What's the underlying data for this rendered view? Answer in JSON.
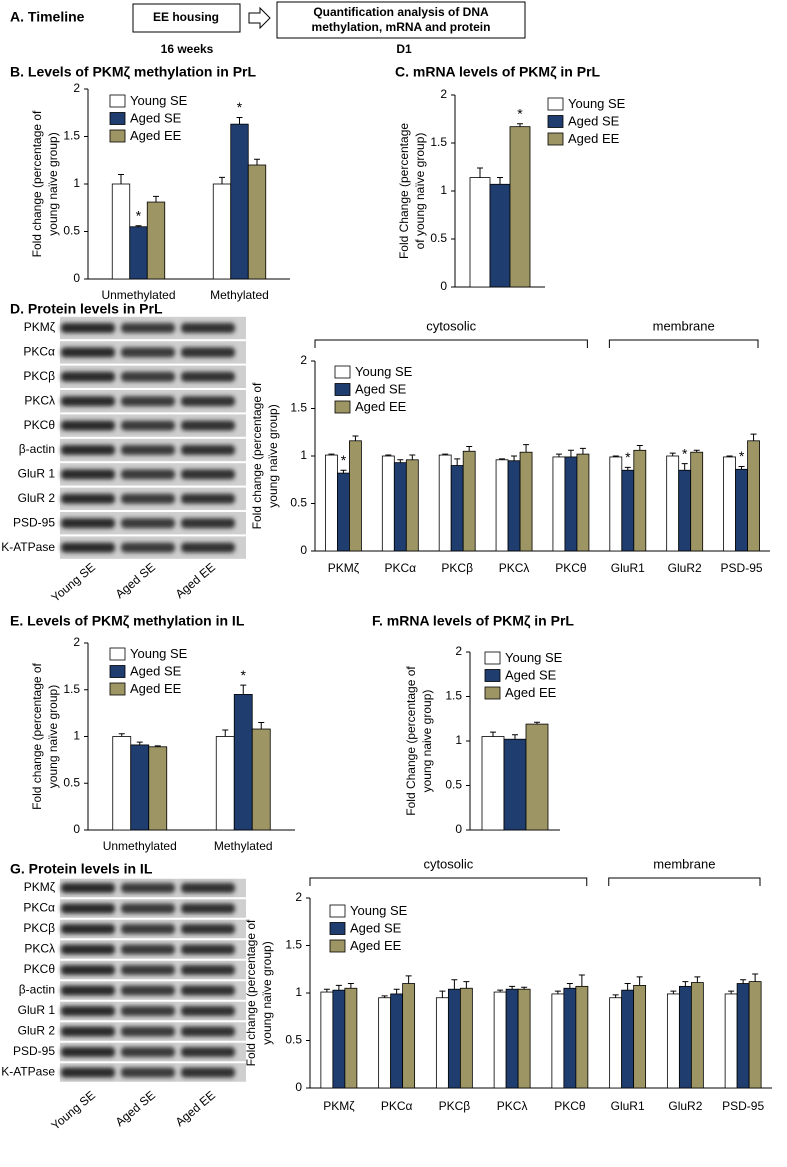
{
  "timeline": {
    "label": "A. Timeline",
    "steps": [
      {
        "text": [
          "EE housing"
        ],
        "below": "16 weeks"
      },
      {
        "text": [
          "Quantification analysis of DNA",
          "methylation, mRNA and  protein"
        ],
        "below": "D1"
      }
    ]
  },
  "blots": [
    {
      "title": "D. Protein levels in PrL",
      "bands": [
        "PKMζ",
        "PKCα",
        "PKCβ",
        "PKCλ",
        "PKCθ",
        "β-actin",
        "GluR 1",
        "GluR 2",
        "PSD-95",
        "Na, K-ATPase"
      ],
      "lanes": [
        "Young SE",
        "Aged SE",
        "Aged EE"
      ]
    },
    {
      "title": "G. Protein levels in IL",
      "bands": [
        "PKMζ",
        "PKCα",
        "PKCβ",
        "PKCλ",
        "PKCθ",
        "β-actin",
        "GluR 1",
        "GluR 2",
        "PSD-95",
        "Na, K-ATPase"
      ],
      "lanes": [
        "Young SE",
        "Aged SE",
        "Aged EE"
      ]
    }
  ],
  "chart_data": [
    {
      "type": "bar",
      "title": "B. Levels of PKMζ methylation in PrL",
      "ylabel": [
        "Fold change (percentage of",
        "young naïve group)"
      ],
      "categories": [
        "Unmethylated",
        "Methylated"
      ],
      "series": [
        {
          "name": "Young SE",
          "color": "#ffffff",
          "values": [
            1.0,
            1.0
          ],
          "errors": [
            0.1,
            0.07
          ]
        },
        {
          "name": "Aged SE",
          "color": "#1f3d6e",
          "values": [
            0.55,
            1.63
          ],
          "errors": [
            0.01,
            0.07
          ]
        },
        {
          "name": "Aged EE",
          "color": "#9e9564",
          "values": [
            0.81,
            1.2
          ],
          "errors": [
            0.06,
            0.06
          ]
        }
      ],
      "annotations": [
        {
          "text": "*",
          "series": 1,
          "category": 0
        },
        {
          "text": "*",
          "series": 1,
          "category": 1
        }
      ],
      "ylim": [
        0,
        2
      ],
      "yticks": [
        0,
        0.5,
        1,
        1.5,
        2
      ],
      "legend": "upper left"
    },
    {
      "type": "bar",
      "title": "C. mRNA levels of PKMζ in PrL",
      "ylabel": [
        "Fold Change (percentage",
        "of young naïve group)"
      ],
      "categories": [
        null
      ],
      "series": [
        {
          "name": "Young SE",
          "color": "#ffffff",
          "values": [
            1.14
          ],
          "errors": [
            0.1
          ]
        },
        {
          "name": "Aged SE",
          "color": "#1f3d6e",
          "values": [
            1.07
          ],
          "errors": [
            0.07
          ]
        },
        {
          "name": "Aged EE",
          "color": "#9e9564",
          "values": [
            1.67
          ],
          "errors": [
            0.03
          ]
        }
      ],
      "annotations": [
        {
          "text": "*",
          "series": 2,
          "category": 0
        }
      ],
      "ylim": [
        0,
        2
      ],
      "yticks": [
        0,
        0.5,
        1,
        1.5,
        2
      ],
      "legend": "right"
    },
    {
      "type": "bar",
      "ylabel": [
        "Fold change (percentage of",
        "young naïve group)"
      ],
      "categories": [
        "PKMζ",
        "PKCα",
        "PKCβ",
        "PKCλ",
        "PKCθ",
        "GluR1",
        "GluR2",
        "PSD-95"
      ],
      "groups": [
        {
          "label": "cytosolic",
          "from": 0,
          "to": 4
        },
        {
          "label": "membrane",
          "from": 5,
          "to": 7
        }
      ],
      "series": [
        {
          "name": "Young SE",
          "color": "#ffffff",
          "values": [
            1.01,
            1.0,
            1.01,
            0.96,
            0.99,
            0.99,
            1.0,
            0.99
          ],
          "errors": [
            0.01,
            0.01,
            0.01,
            0.01,
            0.03,
            0.01,
            0.03,
            0.01
          ]
        },
        {
          "name": "Aged SE",
          "color": "#1f3d6e",
          "values": [
            0.82,
            0.93,
            0.9,
            0.95,
            0.99,
            0.85,
            0.85,
            0.86
          ],
          "errors": [
            0.03,
            0.03,
            0.07,
            0.05,
            0.07,
            0.03,
            0.07,
            0.03
          ]
        },
        {
          "name": "Aged EE",
          "color": "#9e9564",
          "values": [
            1.16,
            0.96,
            1.05,
            1.04,
            1.02,
            1.06,
            1.04,
            1.16
          ],
          "errors": [
            0.05,
            0.05,
            0.05,
            0.08,
            0.06,
            0.05,
            0.02,
            0.07
          ]
        }
      ],
      "annotations": [
        {
          "text": "*",
          "series": 1,
          "category": 0
        },
        {
          "text": "*",
          "series": 1,
          "category": 5
        },
        {
          "text": "*",
          "series": 1,
          "category": 6
        },
        {
          "text": "*",
          "series": 1,
          "category": 7
        }
      ],
      "ylim": [
        0,
        2
      ],
      "yticks": [
        0,
        0.5,
        1,
        1.5,
        2
      ],
      "legend": "upper left"
    },
    {
      "type": "bar",
      "title": "E. Levels of PKMζ methylation in IL",
      "ylabel": [
        "Fold change (percentage of",
        "young naïve group)"
      ],
      "categories": [
        "Unmethylated",
        "Methylated"
      ],
      "series": [
        {
          "name": "Young SE",
          "color": "#ffffff",
          "values": [
            1.0,
            1.0
          ],
          "errors": [
            0.03,
            0.07
          ]
        },
        {
          "name": "Aged SE",
          "color": "#1f3d6e",
          "values": [
            0.91,
            1.45
          ],
          "errors": [
            0.03,
            0.1
          ]
        },
        {
          "name": "Aged EE",
          "color": "#9e9564",
          "values": [
            0.89,
            1.08
          ],
          "errors": [
            0.01,
            0.07
          ]
        }
      ],
      "annotations": [
        {
          "text": "*",
          "series": 1,
          "category": 1
        }
      ],
      "ylim": [
        0,
        2
      ],
      "yticks": [
        0,
        0.5,
        1,
        1.5,
        2
      ],
      "legend": "upper left"
    },
    {
      "type": "bar",
      "title": "F. mRNA levels of PKMζ in PrL",
      "ylabel": [
        "Fold Change (percentage of",
        "young naive group)"
      ],
      "categories": [
        null
      ],
      "series": [
        {
          "name": "Young SE",
          "color": "#ffffff",
          "values": [
            1.05
          ],
          "errors": [
            0.05
          ]
        },
        {
          "name": "Aged SE",
          "color": "#1f3d6e",
          "values": [
            1.02
          ],
          "errors": [
            0.05
          ]
        },
        {
          "name": "Aged EE",
          "color": "#9e9564",
          "values": [
            1.19
          ],
          "errors": [
            0.02
          ]
        }
      ],
      "ylim": [
        0,
        2
      ],
      "yticks": [
        0,
        0.5,
        1,
        1.5,
        2
      ],
      "legend": "upper left"
    },
    {
      "type": "bar",
      "ylabel": [
        "Fold change (percentage of",
        "young naïve group)"
      ],
      "categories": [
        "PKMζ",
        "PKCα",
        "PKCβ",
        "PKCλ",
        "PKCθ",
        "GluR1",
        "GluR2",
        "PSD-95"
      ],
      "groups": [
        {
          "label": "cytosolic",
          "from": 0,
          "to": 4
        },
        {
          "label": "membrane",
          "from": 5,
          "to": 7
        }
      ],
      "series": [
        {
          "name": "Young SE",
          "color": "#ffffff",
          "values": [
            1.01,
            0.95,
            0.95,
            1.01,
            0.99,
            0.95,
            0.99,
            0.99
          ],
          "errors": [
            0.03,
            0.02,
            0.07,
            0.02,
            0.03,
            0.03,
            0.03,
            0.03
          ]
        },
        {
          "name": "Aged SE",
          "color": "#1f3d6e",
          "values": [
            1.03,
            0.99,
            1.04,
            1.04,
            1.05,
            1.03,
            1.07,
            1.1
          ],
          "errors": [
            0.05,
            0.05,
            0.1,
            0.03,
            0.05,
            0.07,
            0.05,
            0.04
          ]
        },
        {
          "name": "Aged EE",
          "color": "#9e9564",
          "values": [
            1.05,
            1.1,
            1.05,
            1.04,
            1.07,
            1.08,
            1.11,
            1.12
          ],
          "errors": [
            0.05,
            0.08,
            0.07,
            0.02,
            0.12,
            0.09,
            0.06,
            0.08
          ]
        }
      ],
      "ylim": [
        0,
        2
      ],
      "yticks": [
        0,
        0.5,
        1,
        1.5,
        2
      ],
      "legend": "upper left"
    }
  ]
}
